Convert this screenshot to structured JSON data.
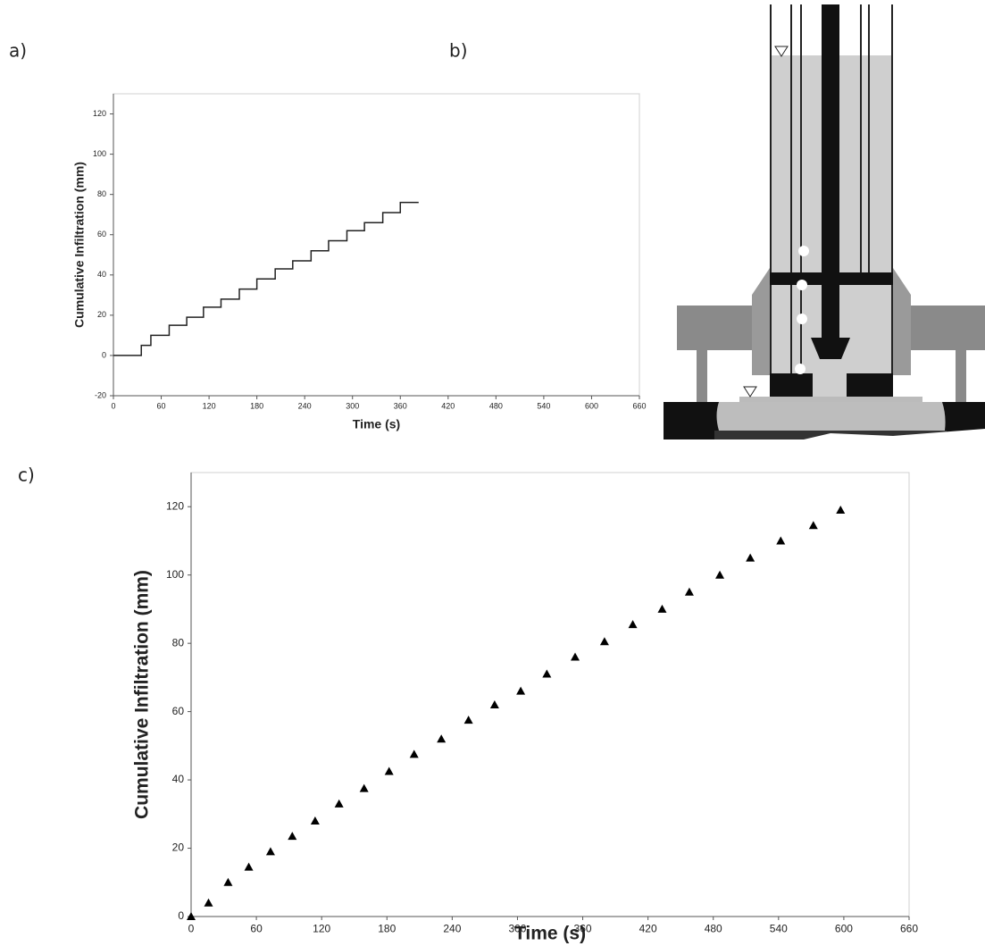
{
  "panel_labels": [
    "a)",
    "b)",
    "c)"
  ],
  "chart_data": [
    {
      "type": "line",
      "x_label": "Time (s)",
      "y_label": "Cumulative Infiltration (mm)",
      "color": "#222222",
      "x": [
        0,
        35,
        35,
        47,
        47,
        70,
        70,
        92,
        92,
        113,
        113,
        135,
        135,
        158,
        158,
        180,
        180,
        203,
        203,
        225,
        225,
        248,
        248,
        270,
        270,
        293,
        293,
        315,
        315,
        338,
        338,
        360,
        360,
        383
      ],
      "values": [
        0,
        0,
        5,
        5,
        10,
        10,
        15,
        15,
        19,
        19,
        24,
        24,
        28,
        28,
        33,
        33,
        38,
        38,
        43,
        43,
        47,
        47,
        52,
        52,
        57,
        57,
        62,
        62,
        66,
        66,
        71,
        71,
        76,
        76
      ],
      "xlim": [
        0,
        660
      ],
      "xticks": [
        0,
        60,
        120,
        180,
        240,
        300,
        360,
        420,
        480,
        540,
        600,
        660
      ],
      "ylim": [
        -20,
        130
      ],
      "yticks": [
        -20,
        0,
        20,
        40,
        60,
        80,
        100,
        120
      ]
    },
    {
      "type": "scatter",
      "marker": "triangle",
      "x_label": "Time (s)",
      "y_label": "Cumulative Infiltration (mm)",
      "color": "#000000",
      "x": [
        0,
        16,
        34,
        53,
        73,
        93,
        114,
        136,
        159,
        182,
        205,
        230,
        255,
        279,
        303,
        327,
        353,
        380,
        406,
        433,
        458,
        486,
        514,
        542,
        572,
        597
      ],
      "values": [
        0,
        4,
        10,
        14.5,
        19,
        23.5,
        28,
        33,
        37.5,
        42.5,
        47.5,
        52,
        57.5,
        62,
        66,
        71,
        76,
        80.5,
        85.5,
        90,
        95,
        100,
        105,
        110,
        114.5,
        119
      ],
      "xlim": [
        0,
        660
      ],
      "xticks": [
        0,
        60,
        120,
        180,
        240,
        300,
        360,
        420,
        480,
        540,
        600,
        660
      ],
      "ylim": [
        0,
        130
      ],
      "yticks": [
        0,
        20,
        40,
        60,
        80,
        100,
        120
      ]
    }
  ]
}
